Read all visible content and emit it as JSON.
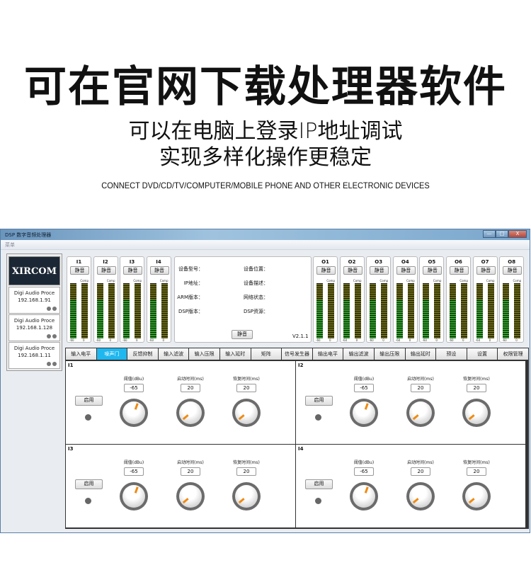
{
  "headline": "可在官网下载处理器软件",
  "subline1": "可以在电脑上登录IP地址调试",
  "subline2": "实现多样化操作更稳定",
  "tagline": "CONNECT DVD/CD/TV/COMPUTER/MOBILE PHONE AND OTHER ELECTRONIC DEVICES",
  "window": {
    "title": "DSP 数字音频处理器",
    "menu": "菜单",
    "min": "—",
    "max": "□",
    "close": "X"
  },
  "sidebar": {
    "logo": "XIRCOM",
    "devices": [
      {
        "name": "Digi Audio Proce",
        "ip": "192.168.1.91"
      },
      {
        "name": "Digi Audio Proce",
        "ip": "192.168.1.128"
      },
      {
        "name": "Digi Audio Proce",
        "ip": "192.168.1.11"
      }
    ]
  },
  "meters": {
    "mute": "静音",
    "comp": "Comp",
    "min": "-60",
    "max": "0",
    "inputs": [
      "I1",
      "I2",
      "I3",
      "I4"
    ],
    "outputs": [
      "O1",
      "O2",
      "O3",
      "O4",
      "O5",
      "O6",
      "O7",
      "O8"
    ]
  },
  "info": {
    "labels": [
      "设备型号：",
      "IP地址：",
      "ARM版本：",
      "DSP版本："
    ],
    "labels2": [
      "设备位置：",
      "设备描述：",
      "网络状态：",
      "DSP资源："
    ],
    "mute": "静音",
    "version": "V2.1.1"
  },
  "tabs": [
    "输入电平",
    "噪声门",
    "反馈抑制",
    "输入滤波",
    "输入压限",
    "输入延时",
    "矩阵",
    "信号发生器",
    "输出电平",
    "输出滤波",
    "输出压限",
    "输出延时",
    "预设",
    "设置",
    "权限管理"
  ],
  "active_tab": "噪声门",
  "colors": {
    "active_tab": "#1fb7ef",
    "knob_indicator": "#f08a10",
    "meter_green": "#2aa12a",
    "meter_olive": "#6b6a18"
  },
  "gates": {
    "enable": "启用",
    "params": [
      "阈值(dBu)",
      "启动时间(ms)",
      "恢复时间(ms)"
    ],
    "channels": [
      {
        "name": "I1",
        "values": [
          "-65",
          "20",
          "20"
        ]
      },
      {
        "name": "I2",
        "values": [
          "-65",
          "20",
          "20"
        ]
      },
      {
        "name": "I3",
        "values": [
          "-65",
          "20",
          "20"
        ]
      },
      {
        "name": "I4",
        "values": [
          "-65",
          "20",
          "20"
        ]
      }
    ]
  }
}
